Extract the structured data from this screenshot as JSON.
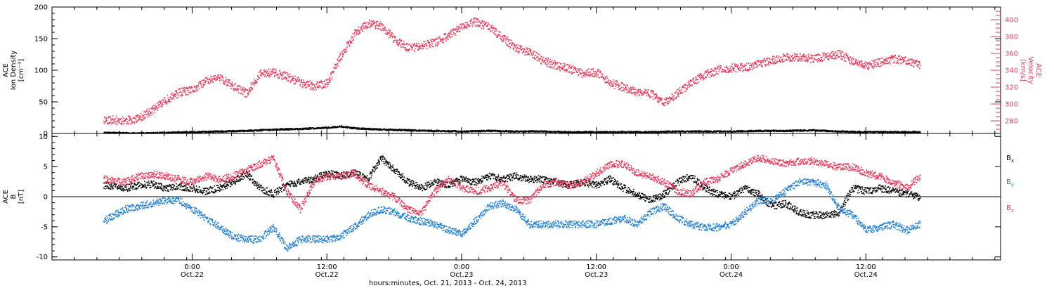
{
  "chart_data": [
    {
      "type": "scatter",
      "panel": "top",
      "ylabel_lines": [
        "ACE",
        "Ion Density",
        "[cm⁻³]"
      ],
      "ylim": [
        0,
        200
      ],
      "yticks": [
        "0",
        "50",
        "100",
        "150",
        "200"
      ],
      "y2label_lines": [
        "ACE",
        "Velocity",
        "[km/s]"
      ],
      "y2lim": [
        265,
        415
      ],
      "y2ticks": [
        "280",
        "300",
        "320",
        "340",
        "360",
        "380",
        "400"
      ],
      "grid": false,
      "series": [
        {
          "axis": "left",
          "color": "#000000",
          "x": [
            -0.33,
            -0.2,
            -0.1,
            0.0,
            0.1,
            0.2,
            0.3,
            0.4,
            0.5,
            0.55,
            0.6,
            0.65,
            0.7,
            0.8,
            0.9,
            1.0,
            1.1,
            1.2,
            1.3,
            1.4,
            1.5,
            1.6,
            1.7,
            1.8,
            1.9,
            2.0,
            2.1,
            2.2,
            2.3,
            2.4,
            2.5,
            2.6,
            2.7
          ],
          "y": [
            2,
            1,
            2,
            3,
            4,
            5,
            7,
            8,
            10,
            12,
            9,
            8,
            7,
            6,
            5,
            4,
            5,
            4,
            4,
            3,
            3,
            3,
            3,
            4,
            4,
            4,
            5,
            5,
            6,
            4,
            3,
            3,
            3
          ]
        },
        {
          "axis": "right",
          "color": "#e8385a",
          "x": [
            -0.33,
            -0.25,
            -0.2,
            -0.15,
            -0.1,
            -0.05,
            0.0,
            0.05,
            0.1,
            0.15,
            0.2,
            0.25,
            0.3,
            0.35,
            0.4,
            0.45,
            0.5,
            0.55,
            0.6,
            0.65,
            0.7,
            0.75,
            0.8,
            0.85,
            0.9,
            0.95,
            1.0,
            1.05,
            1.1,
            1.15,
            1.2,
            1.25,
            1.3,
            1.35,
            1.4,
            1.45,
            1.5,
            1.55,
            1.6,
            1.65,
            1.7,
            1.75,
            1.8,
            1.85,
            1.9,
            1.95,
            2.0,
            2.05,
            2.1,
            2.15,
            2.2,
            2.25,
            2.3,
            2.35,
            2.4,
            2.45,
            2.5,
            2.55,
            2.6,
            2.65,
            2.7
          ],
          "y": [
            282,
            281,
            283,
            293,
            305,
            314,
            317,
            328,
            332,
            322,
            313,
            336,
            338,
            333,
            326,
            322,
            325,
            357,
            383,
            396,
            393,
            377,
            367,
            370,
            373,
            382,
            392,
            398,
            392,
            379,
            367,
            362,
            352,
            346,
            342,
            337,
            338,
            326,
            320,
            314,
            313,
            303,
            313,
            325,
            335,
            341,
            343,
            344,
            348,
            352,
            356,
            356,
            354,
            357,
            360,
            351,
            346,
            350,
            354,
            352,
            346
          ]
        }
      ]
    },
    {
      "type": "scatter",
      "panel": "bottom",
      "ylabel_lines": [
        "ACE",
        "B",
        "[nT]"
      ],
      "ylim": [
        -10.5,
        10.5
      ],
      "yticks": [
        "-10",
        "-5",
        "0",
        "5",
        "10"
      ],
      "zero_line": true,
      "grid": false,
      "legend_position": "right",
      "x": [
        -0.33,
        -0.25,
        -0.2,
        -0.15,
        -0.1,
        -0.05,
        0.0,
        0.05,
        0.1,
        0.15,
        0.2,
        0.25,
        0.3,
        0.35,
        0.4,
        0.45,
        0.5,
        0.55,
        0.6,
        0.65,
        0.7,
        0.75,
        0.8,
        0.85,
        0.9,
        0.95,
        1.0,
        1.05,
        1.1,
        1.15,
        1.2,
        1.25,
        1.3,
        1.35,
        1.4,
        1.45,
        1.5,
        1.55,
        1.6,
        1.65,
        1.7,
        1.75,
        1.8,
        1.85,
        1.9,
        1.95,
        2.0,
        2.05,
        2.1,
        2.15,
        2.2,
        2.25,
        2.3,
        2.35,
        2.4,
        2.45,
        2.5,
        2.55,
        2.6,
        2.65,
        2.7
      ],
      "series": [
        {
          "name": "B",
          "subscript": "x",
          "color": "#000000",
          "y": [
            2,
            1.5,
            2,
            2.2,
            1.5,
            1.8,
            1.5,
            1,
            1.5,
            2.5,
            4,
            1.5,
            0.5,
            2,
            2.5,
            3,
            4,
            3.5,
            4,
            3,
            6.5,
            4.5,
            2.5,
            1.5,
            2.5,
            2,
            3,
            2.5,
            3.5,
            3,
            3.5,
            3,
            3,
            2.5,
            2,
            2.5,
            2,
            3,
            1.5,
            0.5,
            -0.5,
            0.5,
            2.5,
            3.5,
            1.5,
            0.5,
            0,
            1.5,
            0.5,
            -1.5,
            -1,
            -2.5,
            -3,
            -3,
            -2.5,
            1.5,
            1,
            1.5,
            1,
            0.5,
            0
          ]
        },
        {
          "name": "B",
          "subscript": "y",
          "color": "#1f7fd6",
          "y": [
            -4,
            -2,
            -1.5,
            -1,
            -0.5,
            -0.5,
            -2,
            -3.5,
            -5,
            -6.5,
            -7,
            -7,
            -5,
            -8.5,
            -7,
            -7,
            -7,
            -6.5,
            -5,
            -3,
            -2,
            -2.5,
            -3.5,
            -4,
            -4.5,
            -5.5,
            -6,
            -4,
            -1.5,
            -1,
            -2,
            -4.5,
            -4.5,
            -4.5,
            -4.5,
            -4.5,
            -4.5,
            -4,
            -3.5,
            -4.5,
            -2.5,
            -1.5,
            -3.5,
            -4.5,
            -5,
            -5,
            -4.5,
            -2.5,
            -0.5,
            -0.5,
            1,
            2.5,
            2.5,
            2,
            -2,
            -3,
            -5.5,
            -5,
            -4.5,
            -5.5,
            -4.5
          ]
        },
        {
          "name": "B",
          "subscript": "z",
          "color": "#e8385a",
          "y": [
            3,
            2.5,
            3.5,
            3.8,
            3.5,
            3,
            2.5,
            3.5,
            3,
            3.5,
            4.5,
            5.5,
            6.5,
            1,
            -2,
            2.5,
            3.5,
            3.5,
            4,
            2,
            1,
            0,
            -2,
            -2.5,
            1,
            3,
            1.5,
            1,
            1.5,
            2.5,
            -0.5,
            -0.5,
            2,
            2.5,
            2,
            2.5,
            4,
            5.5,
            5.5,
            4,
            3.5,
            2.5,
            1,
            0.5,
            2.5,
            3,
            4.5,
            5.5,
            6.5,
            6,
            5.5,
            6,
            6,
            5.5,
            5,
            5,
            4,
            3.5,
            2.5,
            1.5,
            3.5
          ]
        }
      ]
    }
  ],
  "x_axis": {
    "range": [
      -0.52,
      3.0
    ],
    "major_ticks": [
      0,
      0.5,
      1,
      1.5,
      2,
      2.5
    ],
    "minor_step": 0.0833,
    "tick_time_labels": [
      "0:00",
      "12:00",
      "0:00",
      "12:00",
      "0:00",
      "12:00"
    ],
    "tick_date_labels": [
      "Oct.22",
      "Oct.22",
      "Oct.23",
      "Oct.23",
      "Oct.24",
      "Oct.24"
    ],
    "title": "hours:minutes, Oct. 21, 2013 - Oct. 24, 2013"
  }
}
